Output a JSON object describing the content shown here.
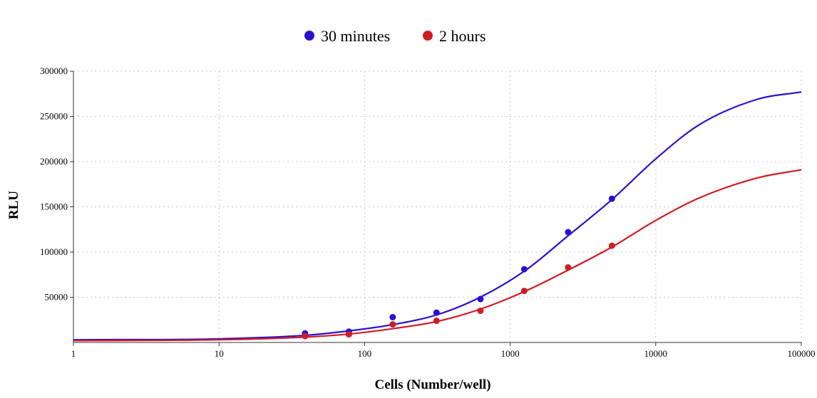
{
  "chart_data": {
    "type": "line",
    "title": "",
    "xlabel": "Cells (Number/well)",
    "ylabel": "RLU",
    "xscale": "log",
    "xlim": [
      1,
      100000
    ],
    "ylim": [
      0,
      300000
    ],
    "x_ticks": [
      "1",
      "10",
      "100",
      "1000",
      "10000",
      "100000"
    ],
    "y_ticks": [
      "50000",
      "100000",
      "150000",
      "200000",
      "250000",
      "300000"
    ],
    "grid": true,
    "legend_position": "top-center",
    "series": [
      {
        "name": "30 minutes",
        "color": "#2a10d0",
        "points": {
          "x": [
            39,
            78,
            156,
            312,
            625,
            1250,
            2500,
            5000
          ],
          "y": [
            10000,
            12000,
            28000,
            33000,
            48000,
            81000,
            122000,
            159000
          ]
        },
        "fit_curve": {
          "x": [
            1,
            10,
            40,
            80,
            160,
            320,
            640,
            1280,
            2500,
            5000,
            10000,
            20000,
            50000,
            100000
          ],
          "y": [
            3000,
            4000,
            8000,
            13000,
            20000,
            31000,
            51000,
            80000,
            118000,
            158000,
            203000,
            241000,
            269000,
            277000
          ]
        }
      },
      {
        "name": "2 hours",
        "color": "#d01c24",
        "points": {
          "x": [
            39,
            78,
            156,
            312,
            625,
            1250,
            2500,
            5000
          ],
          "y": [
            7000,
            9000,
            20000,
            24000,
            35000,
            57000,
            83000,
            107000
          ]
        },
        "fit_curve": {
          "x": [
            1,
            10,
            40,
            80,
            160,
            320,
            640,
            1280,
            2500,
            5000,
            10000,
            20000,
            50000,
            100000
          ],
          "y": [
            2000,
            3000,
            6000,
            9500,
            15500,
            23500,
            37500,
            57000,
            80000,
            105500,
            135000,
            160000,
            182000,
            191000
          ]
        }
      }
    ]
  }
}
